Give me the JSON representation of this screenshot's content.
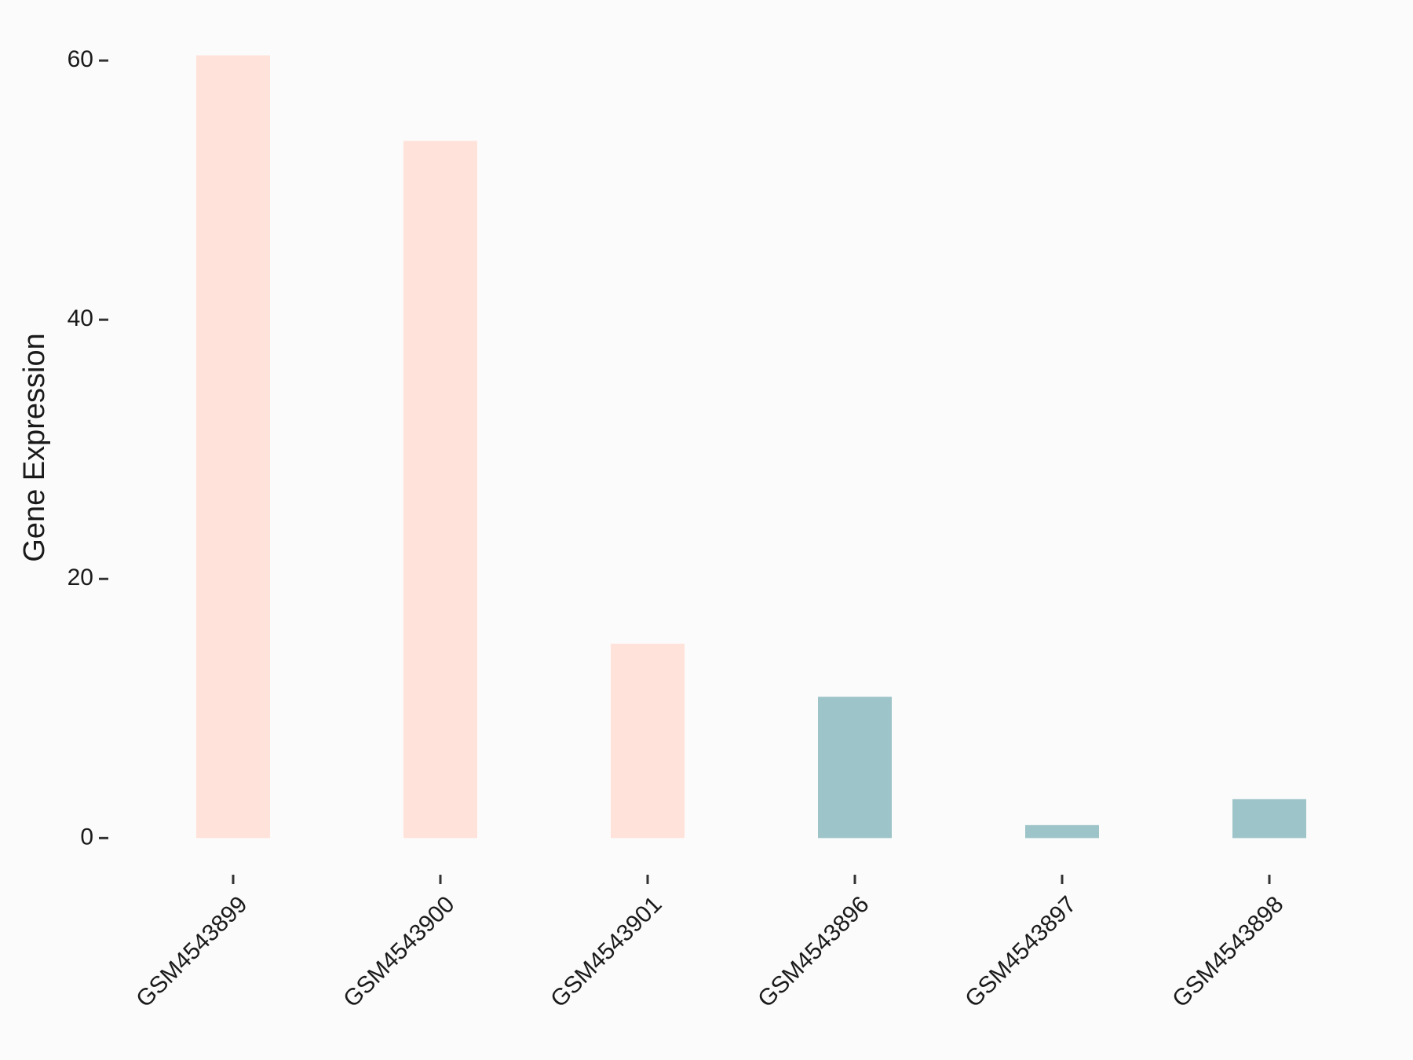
{
  "chart_data": {
    "type": "bar",
    "y_label": "Gene Expression",
    "categories": [
      "GSM4543899",
      "GSM4543900",
      "GSM4543901",
      "GSM4543896",
      "GSM4543897",
      "GSM4543898"
    ],
    "values": [
      60.4,
      53.8,
      15.0,
      10.9,
      1.0,
      3.0
    ],
    "colors": [
      "#ffe2d9",
      "#ffe2d9",
      "#ffe2d9",
      "#9dc4c8",
      "#9dc4c8",
      "#9dc4c8"
    ],
    "ylim": [
      -2.1,
      63.4
    ],
    "yticks": [
      0,
      20,
      40,
      60
    ],
    "grid": false
  }
}
